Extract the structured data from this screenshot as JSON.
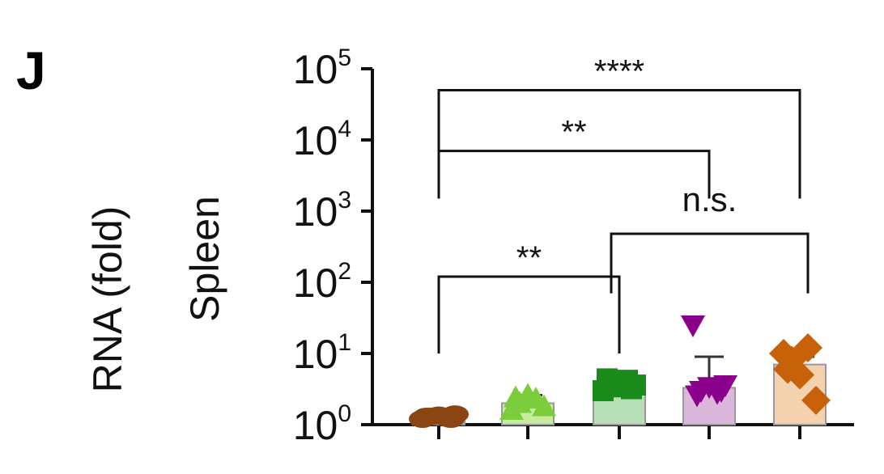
{
  "panel_label": "J",
  "ylabel_lines": [
    "RNA (fold)",
    "Spleen"
  ],
  "chart_data": {
    "type": "bar",
    "scale": "log10",
    "ylim": [
      1,
      100000
    ],
    "yticks": [
      {
        "base": "10",
        "exp": "0"
      },
      {
        "base": "10",
        "exp": "1"
      },
      {
        "base": "10",
        "exp": "2"
      },
      {
        "base": "10",
        "exp": "3"
      },
      {
        "base": "10",
        "exp": "4"
      },
      {
        "base": "10",
        "exp": "5"
      }
    ],
    "groups": [
      {
        "mean": 1.3,
        "err_upper": 1.4,
        "color": "#8B4513",
        "fill": "#d2b48c",
        "marker": "circle",
        "points": [
          1.2,
          1.3,
          1.35,
          1.25,
          1.4,
          1.3,
          1.2
        ]
      },
      {
        "mean": 2.0,
        "err_upper": 2.6,
        "color": "#7CCD3C",
        "fill": "#c8eba0",
        "marker": "triangle-up",
        "points": [
          1.6,
          2.0,
          2.6,
          2.3,
          1.8,
          2.4
        ]
      },
      {
        "mean": 3.6,
        "err_upper": 4.3,
        "color": "#1a8a1a",
        "fill": "#b8e0b8",
        "marker": "square",
        "points": [
          3.0,
          3.4,
          3.8,
          4.2,
          3.6,
          4.4,
          3.2
        ]
      },
      {
        "mean": 3.3,
        "err_upper": 9.0,
        "color": "#8B008B",
        "fill": "#dbb8db",
        "marker": "triangle-down",
        "points": [
          25,
          3.0,
          3.4,
          2.8,
          3.6,
          2.6,
          3.0
        ]
      },
      {
        "mean": 7.0,
        "err_upper": 9.0,
        "color": "#C8620A",
        "fill": "#f4d2b0",
        "marker": "diamond",
        "points": [
          10,
          8,
          5,
          12,
          2.2,
          6
        ]
      }
    ],
    "significance": [
      {
        "from": 0,
        "to": 4,
        "level": 50000,
        "label": "****",
        "drop_to": 1500
      },
      {
        "from": 0,
        "to": 3,
        "level": 7000,
        "label": "**",
        "drop_to": 1500
      },
      {
        "from": 0,
        "to": 2,
        "level": 120,
        "label": "**",
        "drop_to": 10
      },
      {
        "from": 2,
        "to": 4,
        "level": 480,
        "label": "n.s.",
        "drop_to": 70
      }
    ]
  }
}
